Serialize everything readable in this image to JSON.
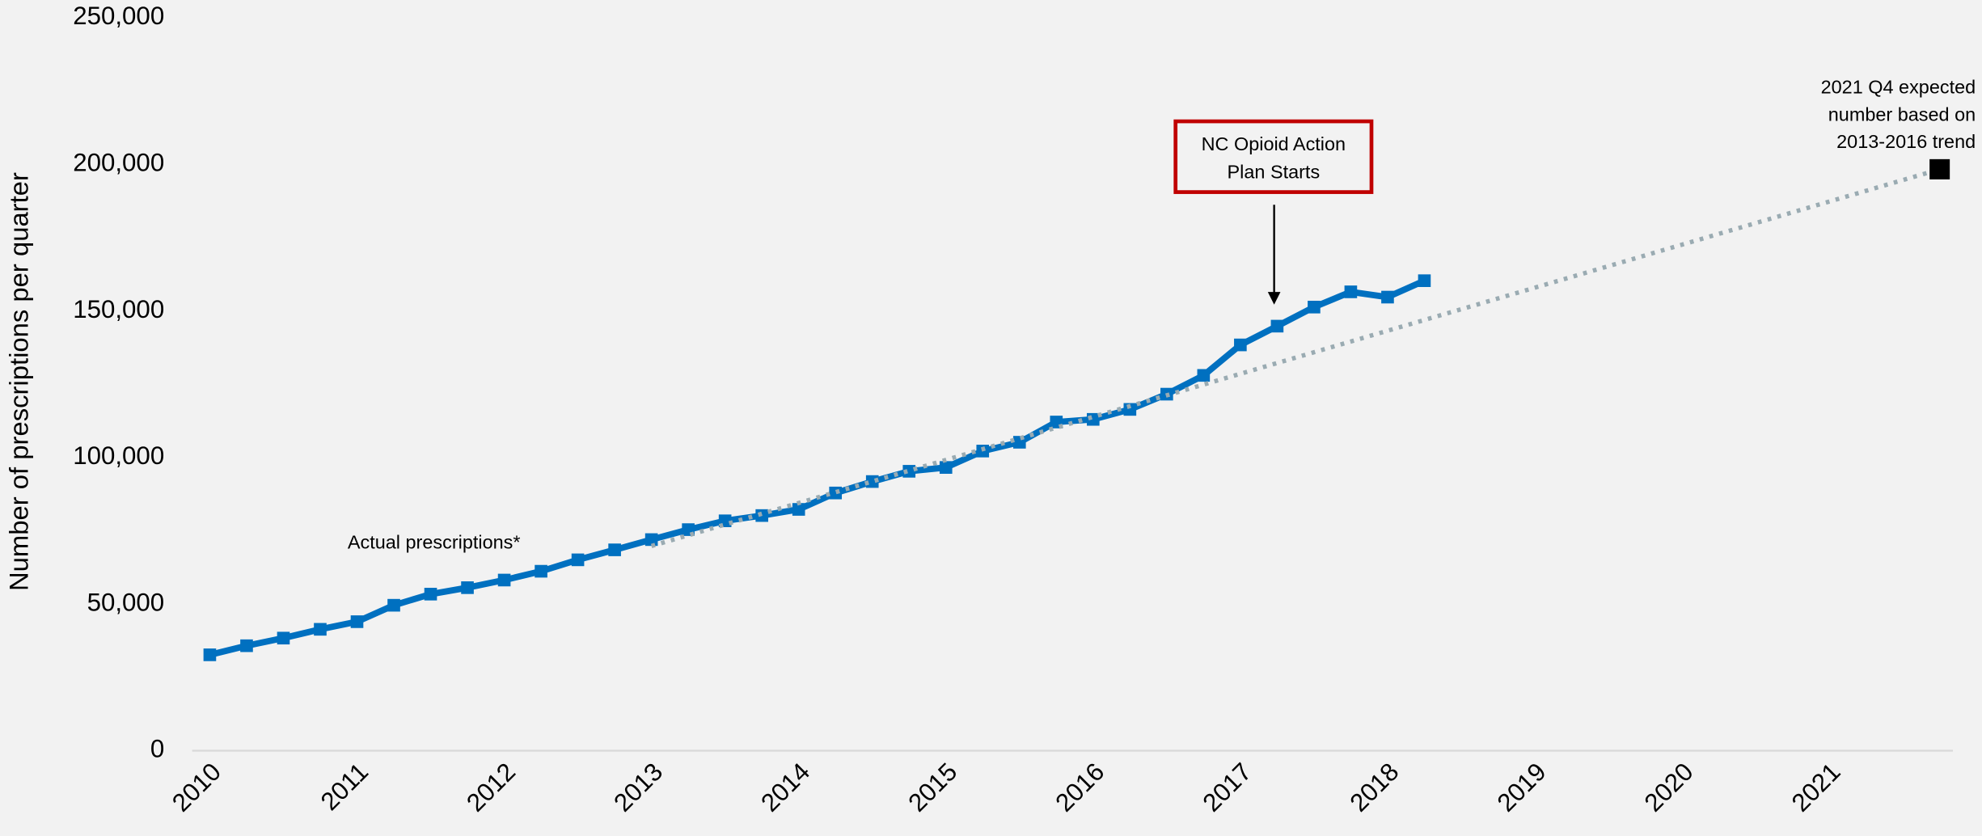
{
  "chart_data": {
    "type": "line",
    "y_label": "Number of prescriptions per quarter",
    "xlim": [
      2009.88,
      2021.84
    ],
    "xticks": [
      2010,
      2011,
      2012,
      2013,
      2014,
      2015,
      2016,
      2017,
      2018,
      2019,
      2020,
      2021
    ],
    "ylim": [
      0,
      250000
    ],
    "yticks": [
      0,
      {
        "value": 50000,
        "label": "50,000"
      },
      {
        "value": 100000,
        "label": "100,000"
      },
      {
        "value": 150000,
        "label": "150,000"
      },
      {
        "value": 200000,
        "label": "200,000"
      },
      {
        "value": 250000,
        "label": "250,000"
      }
    ],
    "grid": false,
    "series": [
      {
        "name": "Actual prescriptions*",
        "color": "#0070c0",
        "style": "solid",
        "x": [
          2010,
          2010.25,
          2010.5,
          2010.75,
          2011,
          2011.25,
          2011.5,
          2011.75,
          2012,
          2012.25,
          2012.5,
          2012.75,
          2013,
          2013.25,
          2013.5,
          2013.75,
          2014,
          2014.25,
          2014.5,
          2014.75,
          2015,
          2015.25,
          2015.5,
          2015.75,
          2016,
          2016.25,
          2016.5,
          2016.75,
          2017,
          2017.25,
          2017.5,
          2017.75,
          2018,
          2018.25
        ],
        "values": [
          32700,
          35800,
          38400,
          41400,
          44000,
          49600,
          53400,
          55600,
          58200,
          61200,
          65100,
          68500,
          72000,
          75400,
          78400,
          80200,
          82300,
          87900,
          91800,
          95300,
          96600,
          102200,
          105200,
          112100,
          113000,
          116400,
          121600,
          128000,
          138400,
          144800,
          151300,
          156500,
          154700,
          160300
        ]
      },
      {
        "color": "#9aabb2",
        "style": "dotted",
        "x": [
          2013,
          2021.75
        ],
        "values": [
          69800,
          198300
        ]
      }
    ],
    "annotations": [
      {
        "lines": [
          "NC Opioid Action",
          "Plan Starts"
        ]
      },
      {
        "lines": [
          "2021 Q4 expected",
          "number based on",
          "2013-2016 trend"
        ]
      }
    ]
  }
}
